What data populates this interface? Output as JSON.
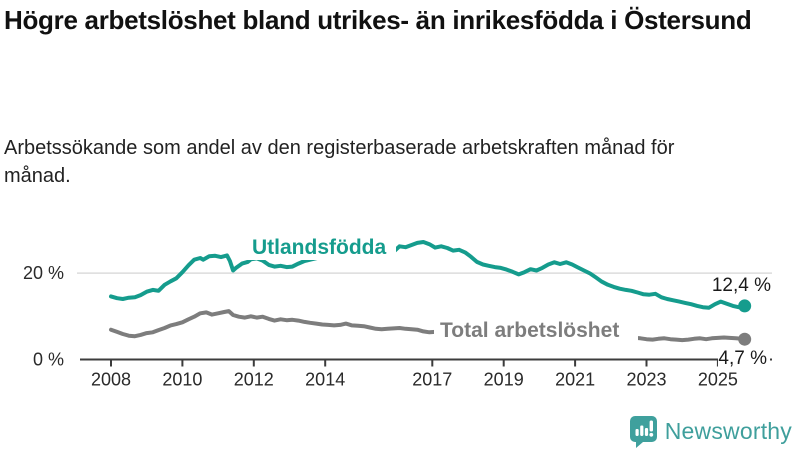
{
  "header": {
    "title": "Högre arbetslöshet bland utrikes- än inrikesfödda i Östersund",
    "subtitle": "Arbetssökande som andel av den registerbaserade arbetskraften månad för månad."
  },
  "footer": {
    "brand": "Newsworthy"
  },
  "colors": {
    "series_foreign": "#159c8d",
    "series_total": "#7d7d7d",
    "axis": "#3c3c3c",
    "grid": "#dcdcdc",
    "tick_text": "#2a2a2a",
    "value_text": "#1a1a1a",
    "logo_teal": "#3fa09d"
  },
  "chart_data": {
    "type": "line",
    "title": "Högre arbetslöshet bland utrikes- än inrikesfödda i Östersund",
    "subtitle": "Arbetssökande som andel av den registerbaserade arbetskraften månad för månad.",
    "unit": "%",
    "grid": "horizontal-only",
    "legend_position": "inline-labels",
    "x_axis": {
      "range": [
        2007.3,
        2026.5
      ],
      "ticks": [
        2008,
        2010,
        2012,
        2014,
        2017,
        2019,
        2021,
        2023,
        2025
      ],
      "tick_labels": [
        "2008",
        "2010",
        "2012",
        "2014",
        "2017",
        "2019",
        "2021",
        "2023",
        "2025"
      ]
    },
    "y_axis": {
      "range": [
        0,
        28
      ],
      "ticks": [
        {
          "value": 0,
          "label": "0 %"
        },
        {
          "value": 20,
          "label": "20 %"
        }
      ]
    },
    "series": [
      {
        "name": "Utlandsfödda",
        "color": "#159c8d",
        "end_value": 12.4,
        "end_label": "12,4 %",
        "points": [
          [
            2008.0,
            14.6
          ],
          [
            2008.17,
            14.2
          ],
          [
            2008.33,
            14.0
          ],
          [
            2008.5,
            14.3
          ],
          [
            2008.67,
            14.4
          ],
          [
            2008.83,
            14.9
          ],
          [
            2009.0,
            15.7
          ],
          [
            2009.17,
            16.1
          ],
          [
            2009.33,
            15.9
          ],
          [
            2009.5,
            17.3
          ],
          [
            2009.67,
            18.1
          ],
          [
            2009.83,
            18.8
          ],
          [
            2010.0,
            20.2
          ],
          [
            2010.17,
            21.8
          ],
          [
            2010.33,
            23.1
          ],
          [
            2010.5,
            23.5
          ],
          [
            2010.58,
            23.1
          ],
          [
            2010.75,
            23.9
          ],
          [
            2010.92,
            24.0
          ],
          [
            2011.08,
            23.7
          ],
          [
            2011.25,
            24.1
          ],
          [
            2011.33,
            22.8
          ],
          [
            2011.42,
            20.6
          ],
          [
            2011.5,
            21.2
          ],
          [
            2011.67,
            22.2
          ],
          [
            2011.83,
            22.6
          ],
          [
            2011.92,
            23.2
          ],
          [
            2012.08,
            23.4
          ],
          [
            2012.25,
            22.9
          ],
          [
            2012.42,
            21.9
          ],
          [
            2012.58,
            21.5
          ],
          [
            2012.75,
            21.7
          ],
          [
            2012.92,
            21.4
          ],
          [
            2013.08,
            21.5
          ],
          [
            2013.25,
            22.2
          ],
          [
            2013.42,
            22.8
          ],
          [
            2013.58,
            23.1
          ],
          [
            2013.83,
            23.6
          ],
          [
            2014.08,
            24.0
          ],
          [
            2014.33,
            24.3
          ],
          [
            2014.58,
            24.6
          ],
          [
            2014.83,
            25.0
          ],
          [
            2015.08,
            25.3
          ],
          [
            2015.33,
            25.6
          ],
          [
            2015.58,
            25.9
          ],
          [
            2015.83,
            25.6
          ],
          [
            2015.95,
            25.2
          ],
          [
            2016.08,
            26.2
          ],
          [
            2016.25,
            26.0
          ],
          [
            2016.42,
            26.5
          ],
          [
            2016.58,
            27.0
          ],
          [
            2016.75,
            27.2
          ],
          [
            2016.92,
            26.7
          ],
          [
            2017.08,
            25.9
          ],
          [
            2017.25,
            26.2
          ],
          [
            2017.42,
            25.8
          ],
          [
            2017.58,
            25.2
          ],
          [
            2017.75,
            25.4
          ],
          [
            2017.92,
            24.8
          ],
          [
            2018.08,
            23.8
          ],
          [
            2018.25,
            22.6
          ],
          [
            2018.42,
            22.0
          ],
          [
            2018.58,
            21.7
          ],
          [
            2018.75,
            21.4
          ],
          [
            2018.92,
            21.2
          ],
          [
            2019.08,
            20.8
          ],
          [
            2019.25,
            20.3
          ],
          [
            2019.42,
            19.7
          ],
          [
            2019.58,
            20.2
          ],
          [
            2019.75,
            20.9
          ],
          [
            2019.92,
            20.6
          ],
          [
            2020.08,
            21.2
          ],
          [
            2020.25,
            22.0
          ],
          [
            2020.42,
            22.5
          ],
          [
            2020.58,
            22.1
          ],
          [
            2020.75,
            22.5
          ],
          [
            2020.92,
            22.0
          ],
          [
            2021.08,
            21.3
          ],
          [
            2021.25,
            20.6
          ],
          [
            2021.42,
            19.9
          ],
          [
            2021.58,
            19.0
          ],
          [
            2021.75,
            18.0
          ],
          [
            2021.92,
            17.3
          ],
          [
            2022.08,
            16.8
          ],
          [
            2022.25,
            16.4
          ],
          [
            2022.42,
            16.1
          ],
          [
            2022.58,
            15.9
          ],
          [
            2022.75,
            15.5
          ],
          [
            2022.92,
            15.1
          ],
          [
            2023.08,
            15.0
          ],
          [
            2023.25,
            15.2
          ],
          [
            2023.42,
            14.4
          ],
          [
            2023.58,
            14.0
          ],
          [
            2023.75,
            13.7
          ],
          [
            2023.92,
            13.4
          ],
          [
            2024.08,
            13.1
          ],
          [
            2024.25,
            12.8
          ],
          [
            2024.42,
            12.4
          ],
          [
            2024.58,
            12.1
          ],
          [
            2024.75,
            12.0
          ],
          [
            2024.92,
            12.8
          ],
          [
            2025.08,
            13.4
          ],
          [
            2025.25,
            12.9
          ],
          [
            2025.42,
            12.4
          ],
          [
            2025.58,
            12.1
          ],
          [
            2025.67,
            12.3
          ],
          [
            2025.75,
            12.4
          ]
        ]
      },
      {
        "name": "Total arbetslöshet",
        "color": "#7d7d7d",
        "end_value": 4.7,
        "end_label": "4,7 %",
        "points": [
          [
            2008.0,
            6.9
          ],
          [
            2008.17,
            6.4
          ],
          [
            2008.33,
            5.9
          ],
          [
            2008.5,
            5.5
          ],
          [
            2008.67,
            5.4
          ],
          [
            2008.83,
            5.7
          ],
          [
            2009.0,
            6.1
          ],
          [
            2009.17,
            6.3
          ],
          [
            2009.33,
            6.8
          ],
          [
            2009.5,
            7.3
          ],
          [
            2009.67,
            7.9
          ],
          [
            2009.83,
            8.2
          ],
          [
            2010.0,
            8.6
          ],
          [
            2010.17,
            9.3
          ],
          [
            2010.33,
            9.9
          ],
          [
            2010.5,
            10.7
          ],
          [
            2010.67,
            10.9
          ],
          [
            2010.83,
            10.4
          ],
          [
            2011.0,
            10.7
          ],
          [
            2011.17,
            11.0
          ],
          [
            2011.3,
            11.2
          ],
          [
            2011.42,
            10.3
          ],
          [
            2011.58,
            9.9
          ],
          [
            2011.75,
            9.7
          ],
          [
            2011.92,
            10.0
          ],
          [
            2012.08,
            9.7
          ],
          [
            2012.25,
            9.9
          ],
          [
            2012.42,
            9.4
          ],
          [
            2012.58,
            9.0
          ],
          [
            2012.75,
            9.3
          ],
          [
            2012.92,
            9.1
          ],
          [
            2013.08,
            9.2
          ],
          [
            2013.25,
            9.0
          ],
          [
            2013.42,
            8.7
          ],
          [
            2013.58,
            8.5
          ],
          [
            2013.75,
            8.3
          ],
          [
            2013.92,
            8.1
          ],
          [
            2014.08,
            8.0
          ],
          [
            2014.25,
            7.9
          ],
          [
            2014.42,
            8.0
          ],
          [
            2014.58,
            8.3
          ],
          [
            2014.75,
            7.9
          ],
          [
            2014.92,
            7.8
          ],
          [
            2015.08,
            7.7
          ],
          [
            2015.25,
            7.4
          ],
          [
            2015.42,
            7.1
          ],
          [
            2015.58,
            7.0
          ],
          [
            2015.75,
            7.1
          ],
          [
            2015.92,
            7.2
          ],
          [
            2016.08,
            7.3
          ],
          [
            2016.25,
            7.1
          ],
          [
            2016.42,
            7.0
          ],
          [
            2016.58,
            6.9
          ],
          [
            2016.75,
            6.5
          ],
          [
            2016.92,
            6.3
          ],
          [
            2017.08,
            6.4
          ],
          [
            2017.33,
            6.3
          ],
          [
            2017.58,
            6.1
          ],
          [
            2017.83,
            6.0
          ],
          [
            2018.08,
            5.9
          ],
          [
            2018.33,
            5.8
          ],
          [
            2018.58,
            5.7
          ],
          [
            2018.83,
            5.6
          ],
          [
            2019.08,
            5.5
          ],
          [
            2019.33,
            5.4
          ],
          [
            2019.58,
            5.3
          ],
          [
            2019.83,
            5.5
          ],
          [
            2020.08,
            6.2
          ],
          [
            2020.33,
            7.2
          ],
          [
            2020.58,
            7.1
          ],
          [
            2020.83,
            6.8
          ],
          [
            2021.08,
            6.4
          ],
          [
            2021.33,
            6.1
          ],
          [
            2021.58,
            5.8
          ],
          [
            2021.83,
            5.5
          ],
          [
            2022.08,
            5.3
          ],
          [
            2022.33,
            5.2
          ],
          [
            2022.5,
            5.1
          ],
          [
            2022.67,
            5.0
          ],
          [
            2022.83,
            4.9
          ],
          [
            2023.0,
            4.7
          ],
          [
            2023.17,
            4.6
          ],
          [
            2023.33,
            4.8
          ],
          [
            2023.5,
            4.9
          ],
          [
            2023.67,
            4.7
          ],
          [
            2023.83,
            4.6
          ],
          [
            2024.0,
            4.5
          ],
          [
            2024.17,
            4.6
          ],
          [
            2024.33,
            4.8
          ],
          [
            2024.5,
            4.9
          ],
          [
            2024.67,
            4.7
          ],
          [
            2024.83,
            4.9
          ],
          [
            2025.0,
            5.0
          ],
          [
            2025.17,
            5.1
          ],
          [
            2025.33,
            5.0
          ],
          [
            2025.5,
            4.9
          ],
          [
            2025.67,
            4.8
          ],
          [
            2025.75,
            4.7
          ]
        ]
      }
    ]
  }
}
